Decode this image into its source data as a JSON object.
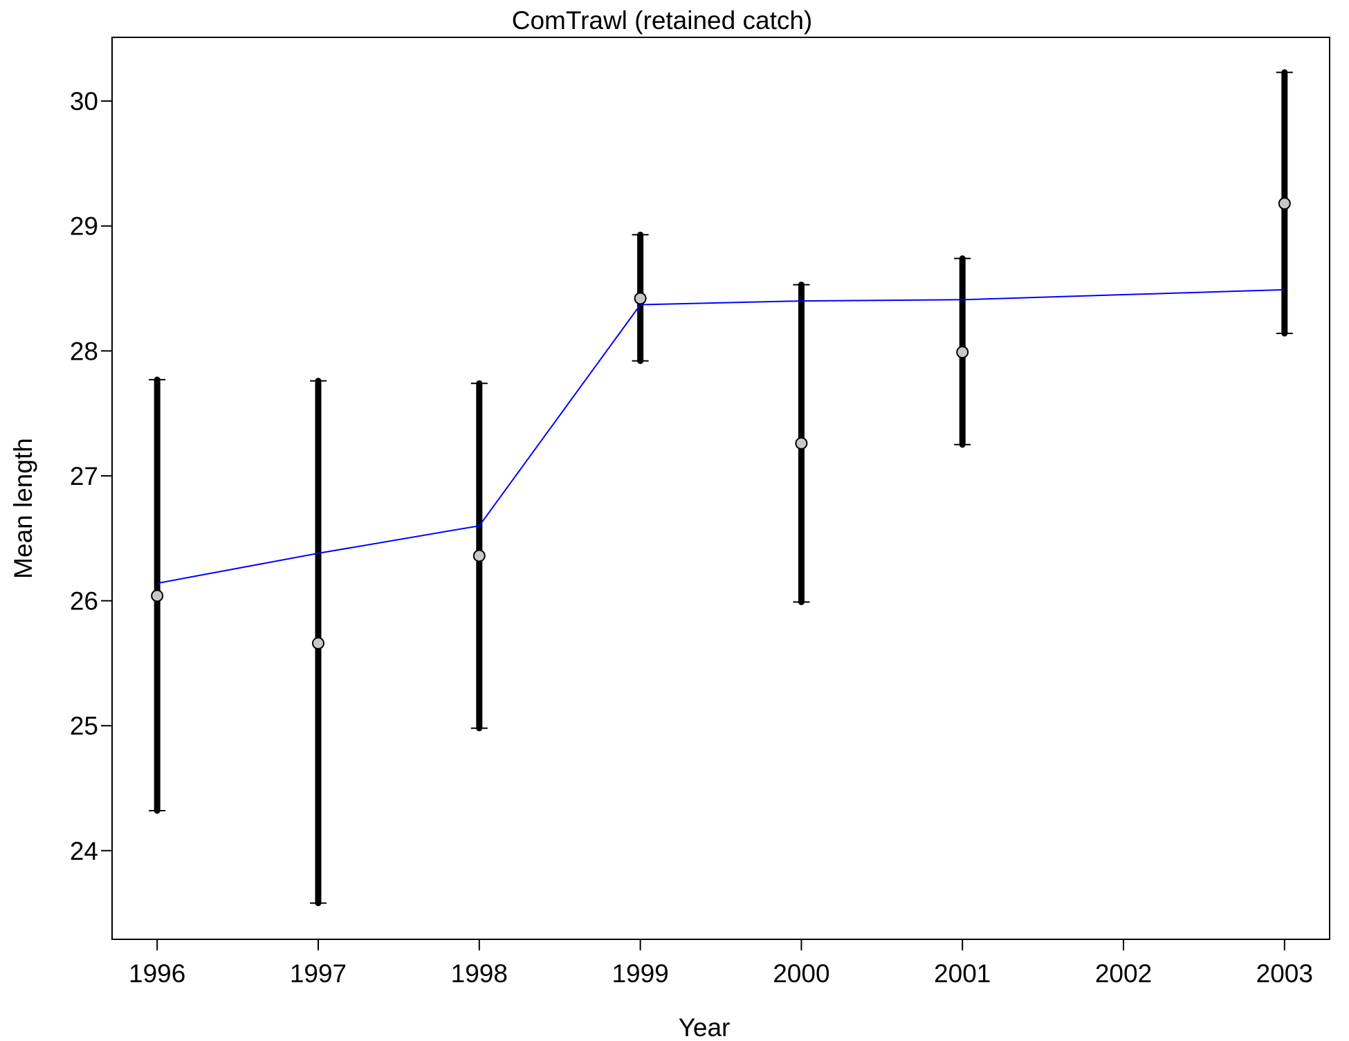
{
  "chart_data": {
    "type": "line",
    "title": "ComTrawl (retained catch)",
    "xlabel": "Year",
    "ylabel": "Mean length",
    "xlim": [
      1995.72,
      2003.28
    ],
    "ylim": [
      23.29,
      30.51
    ],
    "x_ticks": [
      1996,
      1997,
      1998,
      1999,
      2000,
      2001,
      2002,
      2003
    ],
    "x_tick_labels": [
      "1996",
      "1997",
      "1998",
      "1999",
      "2000",
      "2001",
      "2002",
      "2003"
    ],
    "y_ticks": [
      24,
      25,
      26,
      27,
      28,
      29,
      30
    ],
    "y_tick_labels": [
      "24",
      "25",
      "26",
      "27",
      "28",
      "29",
      "30"
    ],
    "grid": false,
    "legend": "none",
    "series": [
      {
        "kind": "observed_points_with_error_bars",
        "x": [
          1996,
          1997,
          1998,
          1999,
          2000,
          2001,
          2003
        ],
        "y": [
          26.04,
          25.66,
          26.36,
          28.42,
          27.26,
          27.99,
          29.18
        ],
        "lower": [
          24.32,
          23.58,
          24.98,
          27.92,
          25.99,
          27.25,
          28.14
        ],
        "upper": [
          27.77,
          27.76,
          27.74,
          28.93,
          28.53,
          28.74,
          30.23
        ],
        "marker_fill": "#c8c8c8",
        "color": "#000000"
      },
      {
        "kind": "expected_line",
        "x": [
          1996,
          1997,
          1998,
          1999,
          2000,
          2001,
          2003
        ],
        "y": [
          26.14,
          26.38,
          26.6,
          28.37,
          28.4,
          28.41,
          28.49
        ],
        "color": "#0000ff"
      }
    ]
  }
}
